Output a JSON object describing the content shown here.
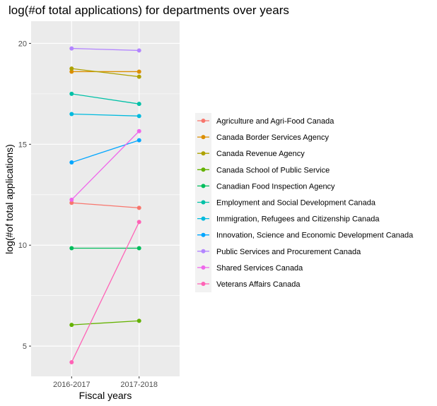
{
  "chart_data": {
    "type": "line",
    "title": "log(#of total applications) for departments over years",
    "xlabel": "Fiscal years",
    "ylabel": "log(#of total applications)",
    "categories": [
      "2016-2017",
      "2017-2018"
    ],
    "ylim": [
      3.5,
      21.1
    ],
    "yticks": [
      5,
      10,
      15,
      20
    ],
    "grid": true,
    "legend_position": "right",
    "series": [
      {
        "name": "Agriculture and Agri-Food Canada",
        "color": "#F8766D",
        "values": [
          12.1,
          11.85
        ]
      },
      {
        "name": "Canada Border Services Agency",
        "color": "#DB8E00",
        "values": [
          18.6,
          18.6
        ]
      },
      {
        "name": "Canada Revenue Agency",
        "color": "#AEA200",
        "values": [
          18.75,
          18.35
        ]
      },
      {
        "name": "Canada School of Public Service",
        "color": "#64B200",
        "values": [
          6.05,
          6.25
        ]
      },
      {
        "name": "Canadian Food Inspection Agency",
        "color": "#00BD5C",
        "values": [
          9.85,
          9.85
        ]
      },
      {
        "name": "Employment and Social Development Canada",
        "color": "#00C1A7",
        "values": [
          17.5,
          17.0
        ]
      },
      {
        "name": "Immigration, Refugees and Citizenship Canada",
        "color": "#00BADE",
        "values": [
          16.5,
          16.4
        ]
      },
      {
        "name": "Innovation, Science and Economic Development Canada",
        "color": "#00A6FF",
        "values": [
          14.1,
          15.2
        ]
      },
      {
        "name": "Public Services and Procurement Canada",
        "color": "#B385FF",
        "values": [
          19.75,
          19.65
        ]
      },
      {
        "name": "Shared Services Canada",
        "color": "#EF67EB",
        "values": [
          12.25,
          15.65
        ]
      },
      {
        "name": "Veterans Affairs Canada",
        "color": "#FF63B6",
        "values": [
          4.2,
          11.15
        ]
      }
    ]
  }
}
